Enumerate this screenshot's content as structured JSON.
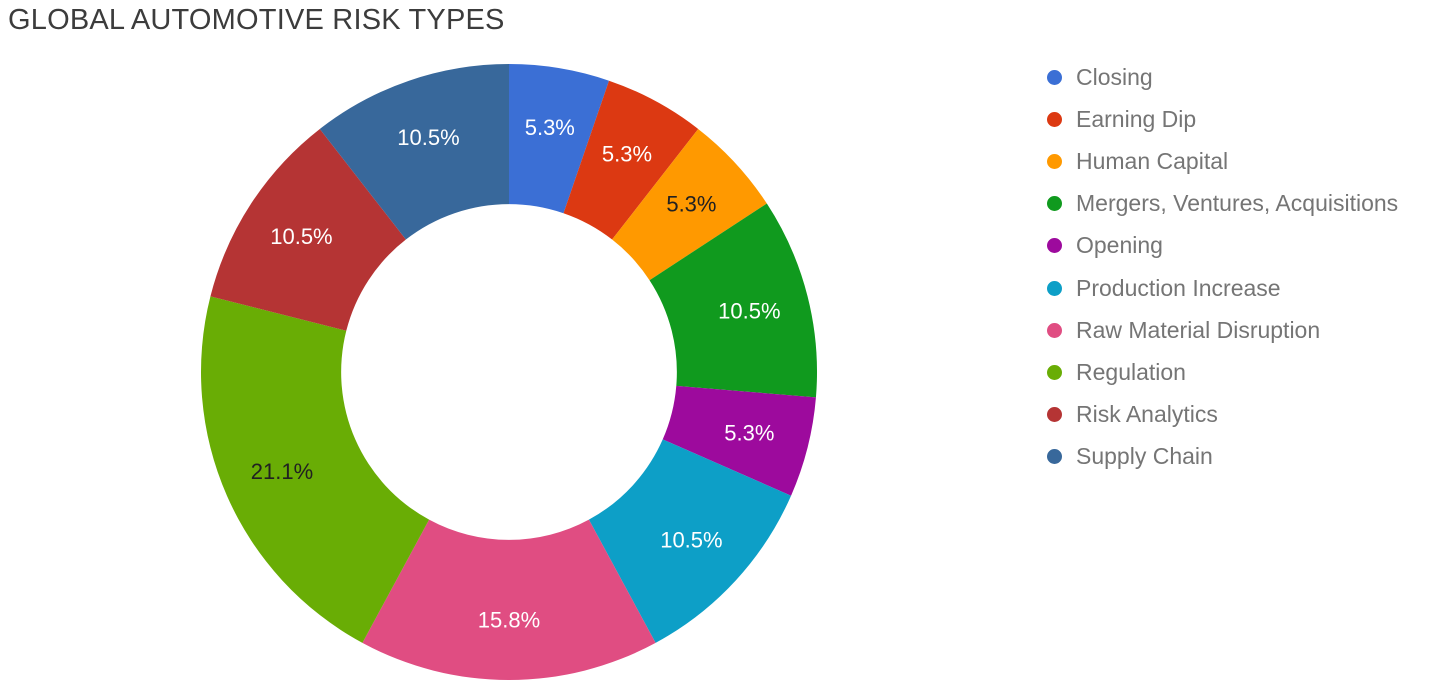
{
  "title": "GLOBAL AUTOMOTIVE RISK TYPES",
  "chart_data": {
    "type": "pie",
    "subtype": "donut",
    "title": "GLOBAL AUTOMOTIVE RISK TYPES",
    "legend_position": "right",
    "hole_ratio": 0.545,
    "total_units": 19,
    "categories": [
      "Closing",
      "Earning Dip",
      "Human Capital",
      "Mergers, Ventures, Acquisitions",
      "Opening",
      "Production Increase",
      "Raw Material Disruption",
      "Regulation",
      "Risk Analytics",
      "Supply Chain"
    ],
    "values": [
      1,
      1,
      1,
      2,
      1,
      2,
      3,
      4,
      2,
      2
    ],
    "percentages": [
      5.3,
      5.3,
      5.3,
      10.5,
      5.3,
      10.5,
      15.8,
      21.1,
      10.5,
      10.5
    ],
    "percent_labels": [
      "5.3%",
      "5.3%",
      "5.3%",
      "10.5%",
      "5.3%",
      "10.5%",
      "15.8%",
      "21.1%",
      "10.5%",
      "10.5%"
    ],
    "colors": [
      "#3b6fd5",
      "#dc3912",
      "#ff9900",
      "#109a1e",
      "#9d0a9d",
      "#0d9fc7",
      "#e04d82",
      "#69ad05",
      "#b53434",
      "#38689b"
    ],
    "label_text_colors": [
      "#ffffff",
      "#ffffff",
      "#212121",
      "#ffffff",
      "#ffffff",
      "#ffffff",
      "#ffffff",
      "#212121",
      "#ffffff",
      "#ffffff"
    ]
  },
  "colors": {
    "title_text": "#3c3c3c",
    "legend_text": "#757575",
    "background": "#ffffff"
  }
}
